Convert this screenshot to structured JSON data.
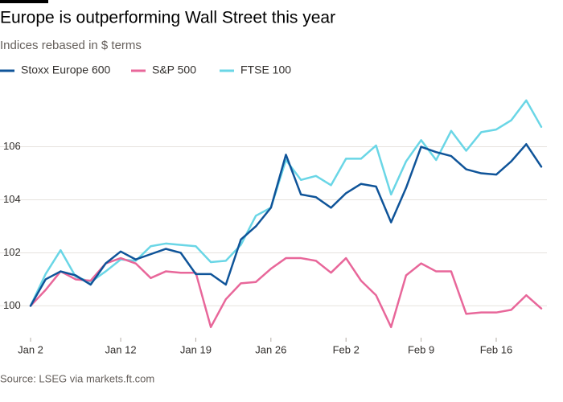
{
  "chart_data": {
    "type": "line",
    "title": "Europe is outperforming Wall Street this year",
    "subtitle": "Indices rebased in $ terms",
    "source": "Source: LSEG via markets.ft.com",
    "categories": [
      "Jan 2",
      null,
      null,
      null,
      null,
      null,
      "Jan 12",
      null,
      null,
      null,
      null,
      "Jan 19",
      null,
      null,
      null,
      null,
      "Jan 26",
      null,
      null,
      null,
      null,
      "Feb 2",
      null,
      null,
      null,
      null,
      "Feb 9",
      null,
      null,
      null,
      null,
      "Feb 16",
      null,
      null,
      null
    ],
    "series": [
      {
        "name": "Stoxx Europe 600",
        "color": "#0f5499",
        "values": [
          100,
          101.0,
          101.3,
          101.15,
          100.8,
          101.6,
          102.05,
          101.75,
          101.95,
          102.15,
          102.0,
          101.2,
          101.2,
          100.8,
          102.5,
          103.0,
          103.7,
          105.7,
          104.2,
          104.1,
          103.7,
          104.25,
          104.6,
          104.5,
          103.15,
          104.45,
          106.0,
          105.8,
          105.65,
          105.15,
          105.0,
          104.95,
          105.45,
          106.1,
          105.25
        ]
      },
      {
        "name": "S&P 500",
        "color": "#e8679a",
        "values": [
          100,
          100.6,
          101.3,
          101.0,
          100.95,
          101.6,
          101.8,
          101.6,
          101.05,
          101.3,
          101.25,
          101.25,
          99.2,
          100.25,
          100.85,
          100.9,
          101.4,
          101.8,
          101.8,
          101.7,
          101.25,
          101.8,
          100.95,
          100.4,
          99.2,
          101.15,
          101.6,
          101.3,
          101.3,
          99.7,
          99.75,
          99.75,
          99.85,
          100.4,
          99.9
        ]
      },
      {
        "name": "FTSE 100",
        "color": "#6ad6e6",
        "values": [
          100,
          101.2,
          102.1,
          101.1,
          100.9,
          101.3,
          101.75,
          101.7,
          102.25,
          102.35,
          102.3,
          102.25,
          101.65,
          101.7,
          102.3,
          103.4,
          103.7,
          105.5,
          104.75,
          104.9,
          104.55,
          105.55,
          105.55,
          106.05,
          104.2,
          105.45,
          106.25,
          105.5,
          106.6,
          105.85,
          106.55,
          106.65,
          107.0,
          107.75,
          106.75
        ]
      }
    ],
    "ylim": [
      98.8,
      108.2
    ],
    "yticks": [
      100,
      102,
      104,
      106
    ],
    "grid": true
  }
}
